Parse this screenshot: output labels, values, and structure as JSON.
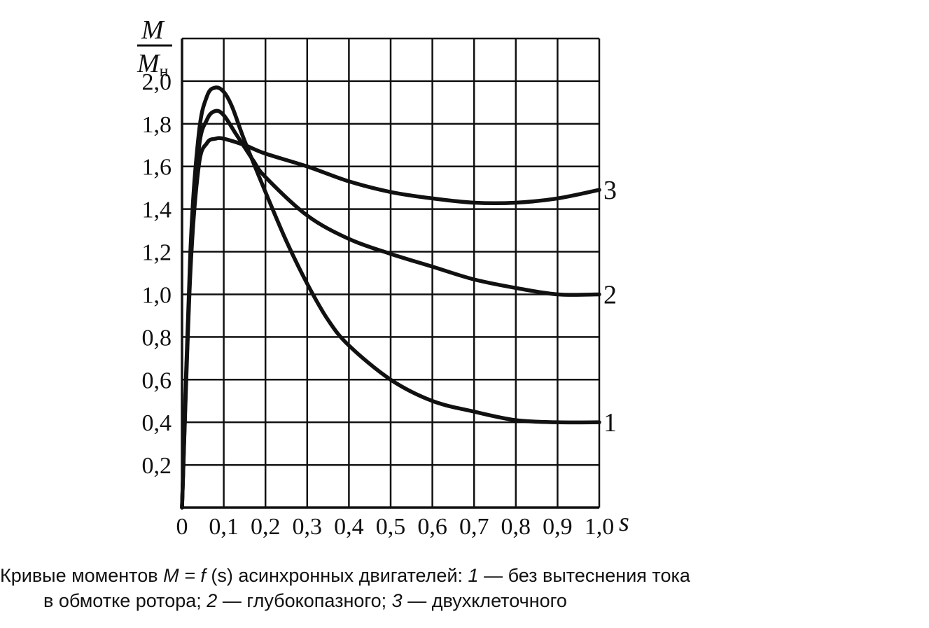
{
  "chart_data": {
    "type": "line",
    "title": "",
    "xlabel": "s",
    "ylabel": {
      "numerator": "M",
      "denominator": "M",
      "denominator_sub": "н"
    },
    "xlim": [
      0,
      1.0
    ],
    "ylim": [
      0,
      2.2
    ],
    "grid": true,
    "x_ticks": [
      "0",
      "0,1",
      "0,2",
      "0,3",
      "0,4",
      "0,5",
      "0,6",
      "0,7",
      "0,8",
      "0,9",
      "1,0"
    ],
    "y_ticks": [
      "0,2",
      "0,4",
      "0,6",
      "0,8",
      "1,0",
      "1,2",
      "1,4",
      "1,6",
      "1,8",
      "2,0"
    ],
    "series": [
      {
        "name": "1",
        "points": [
          [
            0,
            0
          ],
          [
            0.02,
            1.2
          ],
          [
            0.04,
            1.75
          ],
          [
            0.06,
            1.93
          ],
          [
            0.08,
            1.97
          ],
          [
            0.1,
            1.95
          ],
          [
            0.12,
            1.88
          ],
          [
            0.15,
            1.72
          ],
          [
            0.2,
            1.48
          ],
          [
            0.25,
            1.25
          ],
          [
            0.3,
            1.05
          ],
          [
            0.35,
            0.88
          ],
          [
            0.4,
            0.76
          ],
          [
            0.5,
            0.6
          ],
          [
            0.6,
            0.5
          ],
          [
            0.7,
            0.45
          ],
          [
            0.8,
            0.41
          ],
          [
            0.9,
            0.4
          ],
          [
            1.0,
            0.4
          ]
        ]
      },
      {
        "name": "2",
        "points": [
          [
            0,
            0
          ],
          [
            0.02,
            1.15
          ],
          [
            0.04,
            1.68
          ],
          [
            0.06,
            1.82
          ],
          [
            0.08,
            1.86
          ],
          [
            0.1,
            1.84
          ],
          [
            0.13,
            1.75
          ],
          [
            0.17,
            1.63
          ],
          [
            0.2,
            1.55
          ],
          [
            0.3,
            1.37
          ],
          [
            0.4,
            1.26
          ],
          [
            0.5,
            1.19
          ],
          [
            0.6,
            1.13
          ],
          [
            0.7,
            1.07
          ],
          [
            0.8,
            1.03
          ],
          [
            0.9,
            1.0
          ],
          [
            1.0,
            1.0
          ]
        ]
      },
      {
        "name": "3",
        "points": [
          [
            0,
            0
          ],
          [
            0.02,
            1.1
          ],
          [
            0.04,
            1.6
          ],
          [
            0.06,
            1.71
          ],
          [
            0.08,
            1.73
          ],
          [
            0.1,
            1.73
          ],
          [
            0.15,
            1.7
          ],
          [
            0.2,
            1.66
          ],
          [
            0.3,
            1.6
          ],
          [
            0.4,
            1.53
          ],
          [
            0.5,
            1.48
          ],
          [
            0.6,
            1.45
          ],
          [
            0.7,
            1.43
          ],
          [
            0.8,
            1.43
          ],
          [
            0.9,
            1.45
          ],
          [
            1.0,
            1.49
          ]
        ]
      }
    ]
  },
  "caption": {
    "prefix": "Кривые моментов ",
    "formula": "M = f",
    "arg": " (s) ",
    "text1": "асинхронных двигателей: ",
    "n1": "1",
    "d1": " — без вытеснения тока",
    "line2_text": "в обмотке ротора; ",
    "n2": "2",
    "d2": " — глубокопазного; ",
    "n3": "3",
    "d3": " — двухклеточного"
  }
}
